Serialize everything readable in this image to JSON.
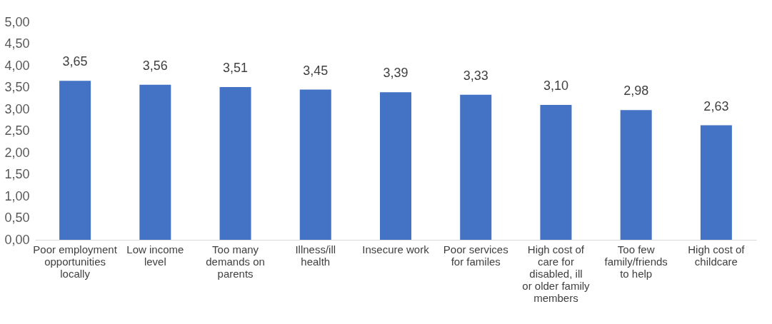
{
  "chart_data": {
    "type": "bar",
    "categories": [
      "Poor employment opportunities locally",
      "Low income level",
      "Too many demands on parents",
      "Illness/ill health",
      "Insecure work",
      "Poor services for familes",
      "High cost of care for disabled, ill or older family members",
      "Too few family/friends to help",
      "High cost of childcare"
    ],
    "values": [
      3.65,
      3.56,
      3.51,
      3.45,
      3.39,
      3.33,
      3.1,
      2.98,
      2.63
    ],
    "value_labels": [
      "3,65",
      "3,56",
      "3,51",
      "3,45",
      "3,39",
      "3,33",
      "3,10",
      "2,98",
      "2,63"
    ],
    "color": "#4472c4",
    "ylim": [
      0,
      5
    ],
    "yticks": [
      {
        "value": 0,
        "label": "0,00"
      },
      {
        "value": 0.5,
        "label": "0,50"
      },
      {
        "value": 1,
        "label": "1,00"
      },
      {
        "value": 1.5,
        "label": "1,50"
      },
      {
        "value": 2,
        "label": "2,00"
      },
      {
        "value": 2.5,
        "label": "2,50"
      },
      {
        "value": 3,
        "label": "3,00"
      },
      {
        "value": 3.5,
        "label": "3,50"
      },
      {
        "value": 4,
        "label": "4,00"
      },
      {
        "value": 4.5,
        "label": "4,50"
      },
      {
        "value": 5,
        "label": "5,00"
      }
    ],
    "grid": false,
    "legend": false
  }
}
